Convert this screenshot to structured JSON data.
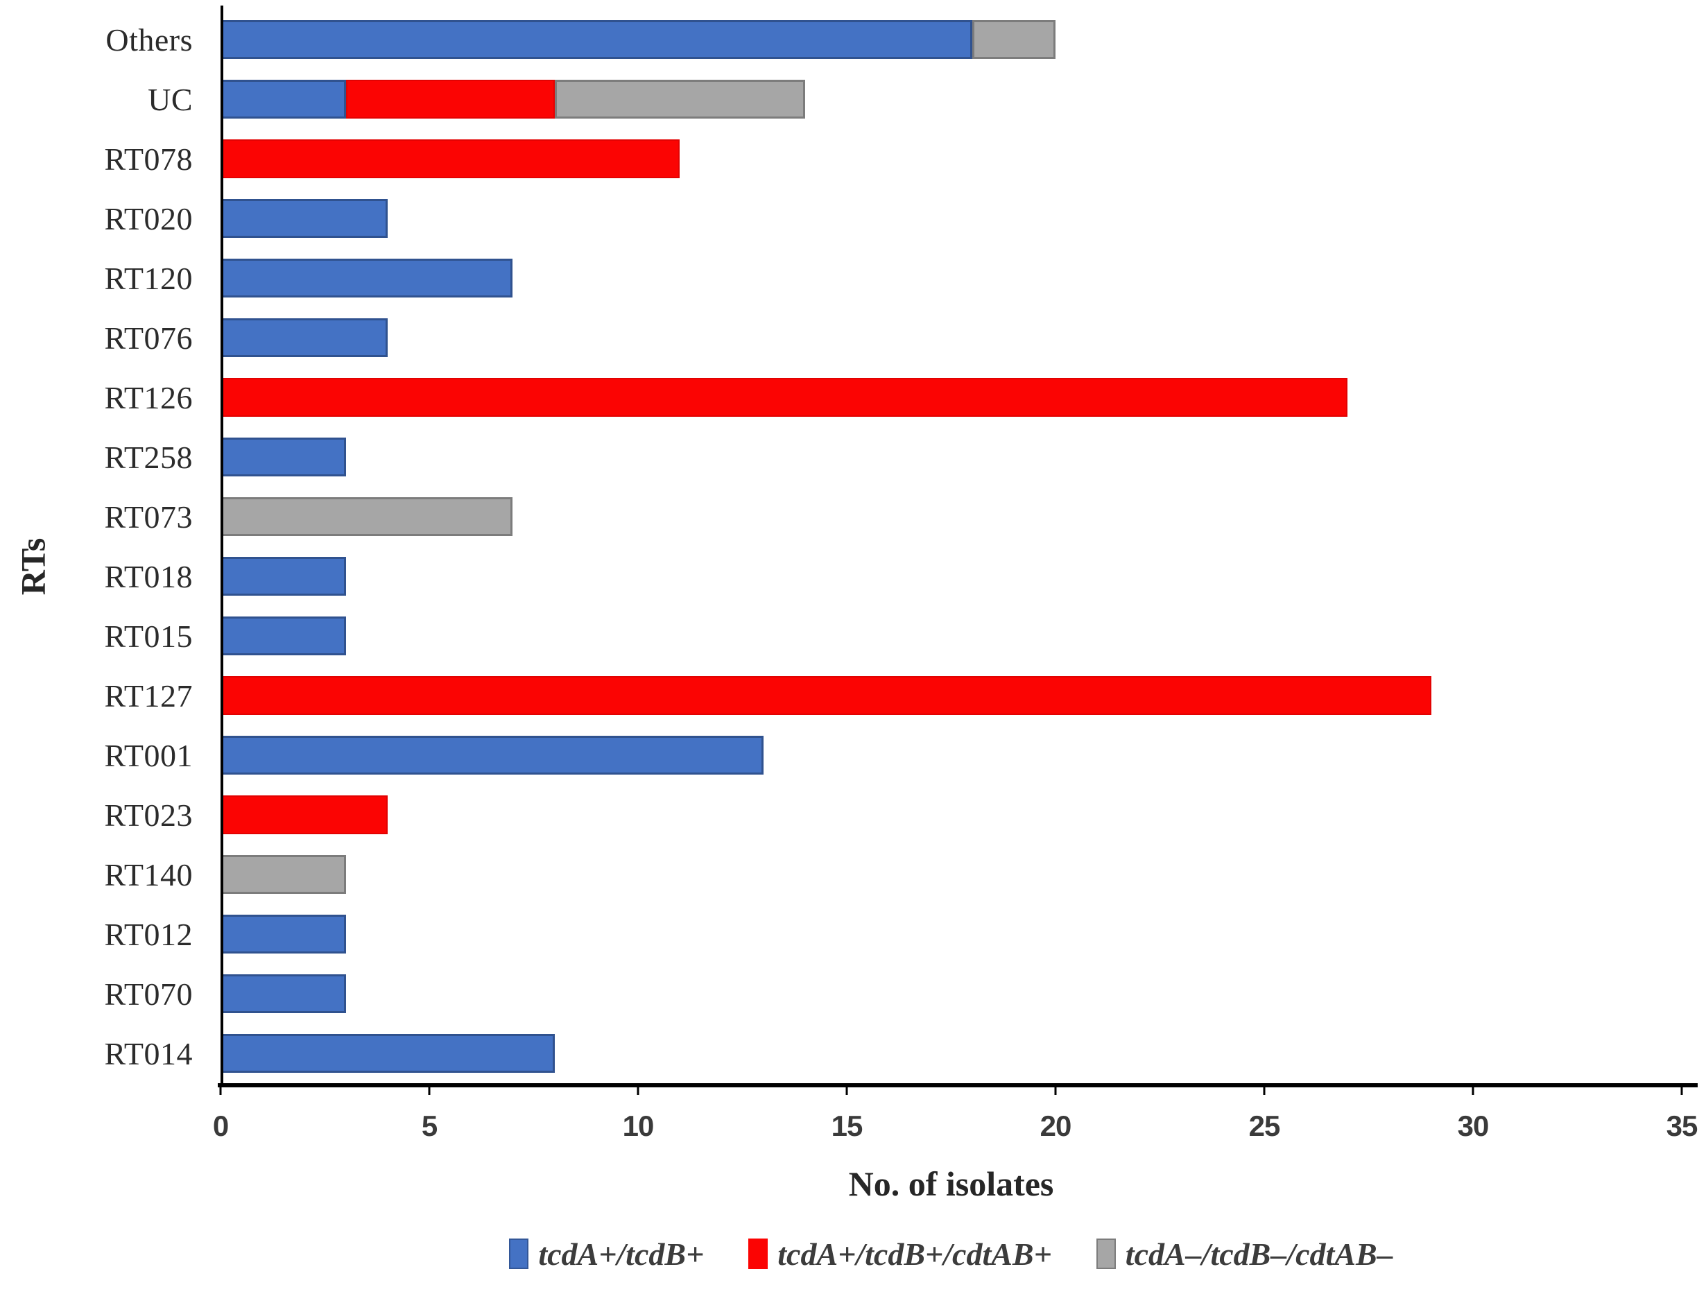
{
  "chart_data": {
    "type": "bar",
    "orientation": "horizontal",
    "stacked": true,
    "title": "",
    "xlabel": "No. of isolates",
    "ylabel": "RTs",
    "xlim": [
      0,
      35
    ],
    "xticks": [
      0,
      5,
      10,
      15,
      20,
      25,
      30,
      35
    ],
    "grid": false,
    "legend_position": "bottom",
    "categories": [
      "Others",
      "UC",
      "RT078",
      "RT020",
      "RT120",
      "RT076",
      "RT126",
      "RT258",
      "RT073",
      "RT018",
      "RT015",
      "RT127",
      "RT001",
      "RT023",
      "RT140",
      "RT012",
      "RT070",
      "RT014"
    ],
    "series": [
      {
        "name": "tcdA+/tcdB+",
        "color": "#4472C4",
        "values": [
          18,
          3,
          0,
          4,
          7,
          4,
          0,
          3,
          0,
          3,
          3,
          0,
          13,
          0,
          0,
          3,
          3,
          8
        ]
      },
      {
        "name": "tcdA+/tcdB+/cdtAB+",
        "color": "#FB0403",
        "values": [
          0,
          5,
          11,
          0,
          0,
          0,
          27,
          0,
          0,
          0,
          0,
          29,
          0,
          4,
          0,
          0,
          0,
          0
        ]
      },
      {
        "name": "tcdA–/tcdB–/cdtAB–",
        "color": "#A6A6A6",
        "values": [
          2,
          6,
          0,
          0,
          0,
          0,
          0,
          0,
          7,
          0,
          0,
          0,
          0,
          0,
          3,
          0,
          0,
          0
        ]
      }
    ],
    "axis_color": "#000000"
  }
}
